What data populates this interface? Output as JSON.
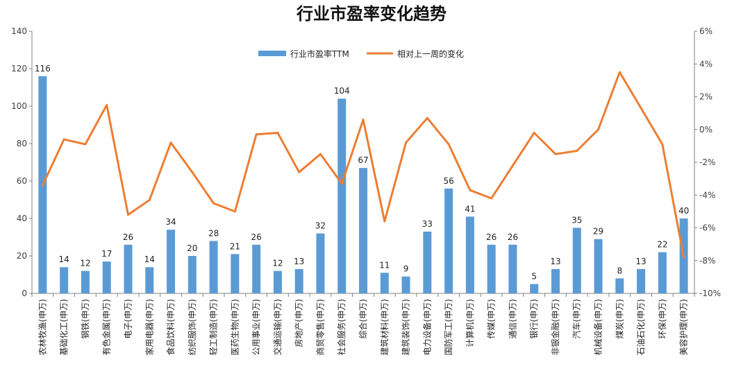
{
  "chart_data": {
    "type": "bar",
    "title": "行业市盈率变化趋势",
    "categories": [
      "农林牧渔(申万)",
      "基础化工(申万)",
      "钢铁(申万)",
      "有色金属(申万)",
      "电子(申万)",
      "家用电器(申万)",
      "食品饮料(申万)",
      "纺织服饰(申万)",
      "轻工制造(申万)",
      "医药生物(申万)",
      "公用事业(申万)",
      "交通运输(申万)",
      "房地产(申万)",
      "商贸零售(申万)",
      "社会服务(申万)",
      "综合(申万)",
      "建筑材料(申万)",
      "建筑装饰(申万)",
      "电力设备(申万)",
      "国防军工(申万)",
      "计算机(申万)",
      "传媒(申万)",
      "通信(申万)",
      "银行(申万)",
      "非银金融(申万)",
      "汽车(申万)",
      "机械设备(申万)",
      "煤炭(申万)",
      "石油石化(申万)",
      "环保(申万)",
      "美容护理(申万)"
    ],
    "series": [
      {
        "name": "行业市盈率TTM",
        "type": "bar",
        "axis": "left",
        "color": "#5B9BD5",
        "values": [
          116,
          14,
          12,
          17,
          26,
          14,
          34,
          20,
          28,
          21,
          26,
          12,
          13,
          32,
          104,
          67,
          11,
          9,
          33,
          56,
          41,
          26,
          26,
          5,
          13,
          35,
          29,
          8,
          13,
          22,
          40
        ]
      },
      {
        "name": "相对上一周的变化",
        "type": "line",
        "axis": "right",
        "color": "#ED7D31",
        "values": [
          -3.4,
          -0.6,
          -0.9,
          1.5,
          -5.2,
          -4.3,
          -0.8,
          -2.6,
          -4.5,
          -5.0,
          -0.3,
          -0.2,
          -2.6,
          -1.5,
          -3.3,
          0.6,
          -5.6,
          -0.8,
          0.7,
          -0.9,
          -3.7,
          -4.2,
          -2.2,
          -0.2,
          -1.5,
          -1.3,
          0.0,
          3.5,
          1.3,
          -0.9,
          -7.8
        ]
      }
    ],
    "y_left": {
      "min": 0,
      "max": 140,
      "step": 20
    },
    "y_right": {
      "min": -10,
      "max": 6,
      "step": 2,
      "unit": "%"
    },
    "legend": {
      "placement": "top-center"
    },
    "grid": false
  }
}
